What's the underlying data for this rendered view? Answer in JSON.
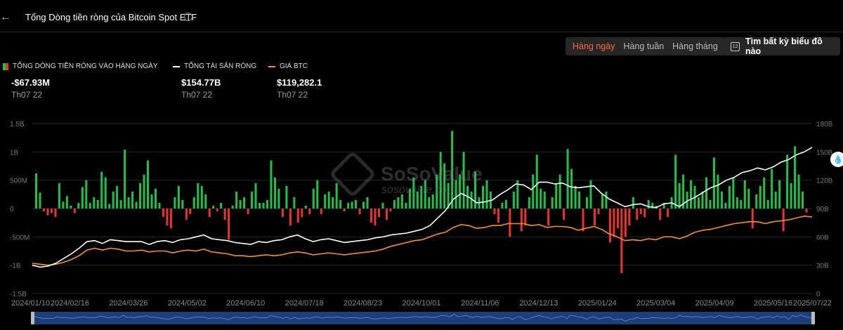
{
  "header": {
    "back_icon": "arrow-left-icon",
    "title": "Tổng Dòng tiền ròng của Bitcoin Spot ETF",
    "info_icon": "info-icon"
  },
  "controls": {
    "periods": [
      "Hàng ngày",
      "Hàng tuần",
      "Hàng tháng"
    ],
    "active_period": "Hàng ngày",
    "search_label": "Tìm bất kỳ biểu đồ nào",
    "calendar_icon": "calendar-icon",
    "calendar_day": "12"
  },
  "legend": [
    {
      "label": "TỔNG DÒNG TIỀN RÒNG VÀO HÀNG NGÀY",
      "value": "-$67.93M",
      "date": "Th07 22"
    },
    {
      "label": "TỔNG TÀI SẢN RÒNG",
      "value": "$154.77B",
      "date": "Th07 22"
    },
    {
      "label": "GIÁ BTC",
      "value": "$119,282.1",
      "date": "Th07 22"
    }
  ],
  "watermark": {
    "name": "SoSoValue",
    "sub": "sosovalue.com"
  },
  "colors": {
    "inflow": "#1fbf4b",
    "outflow": "#e8322f",
    "assets": "#ffffff",
    "price": "#f7931a",
    "accent": "#ff6a3d"
  },
  "chart_data": {
    "type": "bar",
    "x_start": "2024/01/10",
    "x_end": "2025/07/22",
    "x_ticks": [
      "2024/01/10",
      "2024/02/16",
      "2024/03/26",
      "2024/05/02",
      "2024/06/10",
      "2024/07/18",
      "2024/08/23",
      "2024/10/01",
      "2024/11/06",
      "2024/12/13",
      "2025/01/24",
      "2025/03/04",
      "2025/04/09",
      "2025/05/16",
      "2025/07/22"
    ],
    "y_left_ticks": [
      "1.5B",
      "1B",
      "500M",
      "0",
      "-500M",
      "-1B",
      "-1.5B"
    ],
    "y_left_range": [
      -1.5,
      1.5
    ],
    "y_left_unit": "B",
    "y_right_ticks": [
      "180B",
      "150B",
      "120B",
      "90B",
      "60B",
      "30B",
      "0"
    ],
    "y_right_range": [
      0,
      180
    ],
    "grid": true,
    "series": [
      {
        "name": "TỔNG DÒNG TIỀN RÒNG VÀO HÀNG NGÀY",
        "kind": "bar",
        "axis": "left",
        "values": [
          0.62,
          0.28,
          -0.05,
          -0.12,
          -0.08,
          -0.15,
          0.45,
          0.12,
          0.22,
          0.05,
          -0.08,
          0.1,
          0.38,
          0.5,
          0.1,
          0.2,
          0.15,
          0.65,
          0.55,
          0.08,
          0.3,
          0.4,
          0.15,
          1.04,
          0.2,
          0.3,
          0.12,
          0.45,
          0.6,
          0.85,
          0.25,
          0.35,
          0.1,
          -0.15,
          -0.3,
          -0.35,
          0.2,
          0.4,
          0.15,
          -0.2,
          -0.1,
          0.2,
          0.45,
          0.4,
          0.25,
          -0.15,
          0.05,
          -0.05,
          0.1,
          -0.2,
          -0.55,
          0.05,
          0.3,
          0.15,
          0.2,
          -0.1,
          0.3,
          0.45,
          0.1,
          0.1,
          0.15,
          0.85,
          0.55,
          0.35,
          -0.15,
          0.4,
          -0.3,
          0.2,
          -0.25,
          -0.15,
          0.05,
          -0.1,
          0.35,
          0.5,
          -0.1,
          0.25,
          0.3,
          0.2,
          0.45,
          0.15,
          -0.05,
          0.1,
          0.12,
          0.15,
          -0.1,
          0.12,
          0.2,
          -0.25,
          -0.3,
          -0.15,
          0.1,
          -0.2,
          -0.05,
          0.15,
          0.2,
          0.25,
          0.1,
          0.35,
          0.55,
          0.3,
          0.4,
          0.5,
          0.2,
          0.25,
          0.6,
          1.0,
          0.8,
          0.45,
          1.37,
          0.5,
          0.6,
          1.0,
          0.4,
          0.3,
          0.65,
          0.2,
          0.4,
          0.5,
          0.3,
          -0.1,
          -0.25,
          0.1,
          0.15,
          -0.5,
          0.3,
          0.5,
          -0.4,
          -0.3,
          0.2,
          0.6,
          0.95,
          0.35,
          0.3,
          -0.3,
          0.2,
          0.45,
          0.6,
          -0.2,
          1.05,
          0.7,
          0.4,
          0.3,
          -0.4,
          0.2,
          0.5,
          -0.3,
          -0.1,
          0.25,
          0.3,
          -0.6,
          -0.5,
          -0.35,
          -1.14,
          -0.5,
          -0.3,
          0.2,
          -0.2,
          -0.1,
          -0.15,
          0.15,
          0.1,
          0.05,
          -0.2,
          0.1,
          -0.15,
          0.2,
          0.95,
          0.45,
          0.6,
          0.3,
          0.5,
          0.4,
          0.2,
          0.3,
          0.55,
          0.15,
          0.9,
          0.6,
          0.3,
          0.1,
          0.4,
          0.55,
          0.2,
          0.15,
          0.5,
          0.35,
          -0.35,
          0.25,
          0.4,
          0.55,
          0.15,
          0.7,
          0.3,
          0.5,
          -0.4,
          0.95,
          0.45,
          1.1,
          0.6,
          0.3,
          -0.07
        ]
      },
      {
        "name": "TỔNG TÀI SẢN RÒNG",
        "kind": "line",
        "axis": "right",
        "values": [
          30,
          28,
          29,
          32,
          37,
          42,
          48,
          55,
          56,
          53,
          57,
          56,
          55,
          55,
          55,
          52,
          55,
          56,
          54,
          57,
          58,
          60,
          62,
          58,
          57,
          56,
          54,
          53,
          52,
          55,
          54,
          56,
          57,
          60,
          62,
          58,
          55,
          57,
          58,
          56,
          54,
          55,
          56,
          57,
          59,
          60,
          62,
          63,
          64,
          66,
          68,
          72,
          80,
          88,
          100,
          106,
          102,
          96,
          97,
          99,
          105,
          110,
          116,
          115,
          110,
          118,
          118,
          116,
          117,
          113,
          112,
          113,
          114,
          106,
          100,
          96,
          92,
          94,
          95,
          92,
          91,
          95,
          96,
          92,
          98,
          102,
          107,
          112,
          115,
          120,
          123,
          128,
          130,
          133,
          131,
          134,
          139,
          142,
          147,
          150,
          154.77
        ]
      },
      {
        "name": "GIÁ BTC",
        "kind": "line",
        "axis": "right",
        "values": [
          32,
          31,
          30,
          31,
          33,
          36,
          40,
          46,
          48,
          46,
          48,
          47,
          45,
          45,
          46,
          44,
          45,
          45,
          43,
          45,
          46,
          45,
          47,
          44,
          43,
          42,
          40,
          40,
          39,
          40,
          41,
          40,
          41,
          43,
          44,
          43,
          41,
          42,
          43,
          42,
          41,
          42,
          43,
          44,
          45,
          47,
          50,
          52,
          54,
          56,
          57,
          60,
          63,
          65,
          70,
          73,
          72,
          69,
          70,
          72,
          72,
          74,
          74,
          74,
          72,
          73,
          70,
          71,
          71,
          70,
          67,
          69,
          71,
          68,
          63,
          60,
          56,
          57,
          56,
          58,
          57,
          60,
          60,
          58,
          61,
          65,
          67,
          68,
          70,
          72,
          74,
          75,
          76,
          76,
          74,
          76,
          77,
          78,
          80,
          82,
          81
        ]
      }
    ]
  }
}
